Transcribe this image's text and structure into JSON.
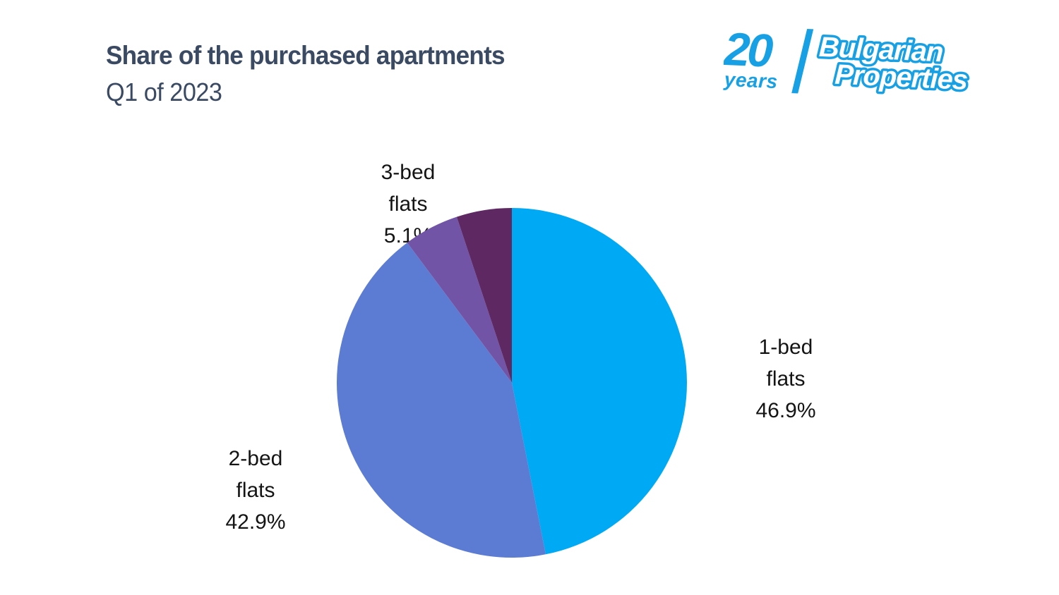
{
  "header": {
    "title": "Share of the purchased apartments",
    "subtitle": "Q1 of 2023",
    "title_color": "#3B4A63"
  },
  "logo": {
    "number": "20",
    "years": "years",
    "name_line1": "Bulgarian",
    "name_line2": "Properties",
    "color": "#18A0E4"
  },
  "chart_data": {
    "type": "pie",
    "title": "Share of the purchased apartments",
    "subtitle": "Q1 of 2023",
    "direction": "clockwise",
    "start_angle_deg": 0,
    "legend": "none",
    "label_position": "outside",
    "slices": [
      {
        "label": "1-bed flats",
        "value": 46.9,
        "color": "#00A9F4",
        "label_lines": [
          "1-bed",
          "flats",
          "46.9%"
        ]
      },
      {
        "label": "2-bed flats",
        "value": 42.9,
        "color": "#5B7CD2",
        "label_lines": [
          "2-bed",
          "flats",
          "42.9%"
        ]
      },
      {
        "label": "3-bed flats",
        "value": 5.1,
        "color": "#7254A6",
        "label_lines": [
          "3-bed",
          "flats",
          "5.1%"
        ]
      },
      {
        "label": "",
        "value": 5.1,
        "color": "#5E2963",
        "label_lines": []
      }
    ]
  }
}
